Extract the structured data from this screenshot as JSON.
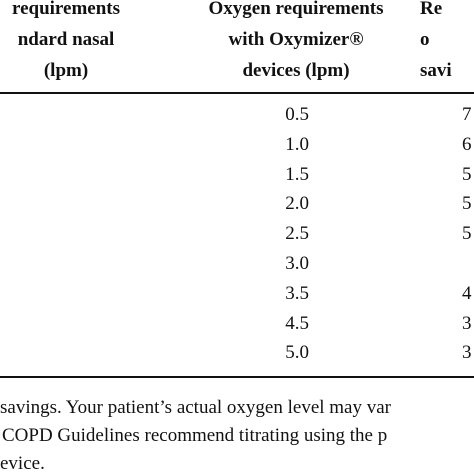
{
  "header": {
    "columns": [
      {
        "lines": [
          "requirements",
          "ndard nasal",
          "(lpm)"
        ]
      },
      {
        "lines": [
          "Oxygen requirements",
          "with Oxymizer®",
          "devices (lpm)"
        ]
      },
      {
        "lines": [
          "Re",
          "o",
          "savi"
        ]
      }
    ]
  },
  "table": {
    "rows": [
      [
        "0.5",
        "7"
      ],
      [
        "1.0",
        "6"
      ],
      [
        "1.5",
        "5"
      ],
      [
        "2.0",
        "5"
      ],
      [
        "2.5",
        "5"
      ],
      [
        "3.0"
      ],
      [
        "3.5",
        "4"
      ],
      [
        "4.5",
        "3"
      ],
      [
        "5.0",
        "3"
      ]
    ]
  },
  "footer": {
    "lines": [
      "savings. Your patient’s actual oxygen level may var",
      "COPD Guidelines recommend titrating using the p",
      "evice."
    ]
  }
}
